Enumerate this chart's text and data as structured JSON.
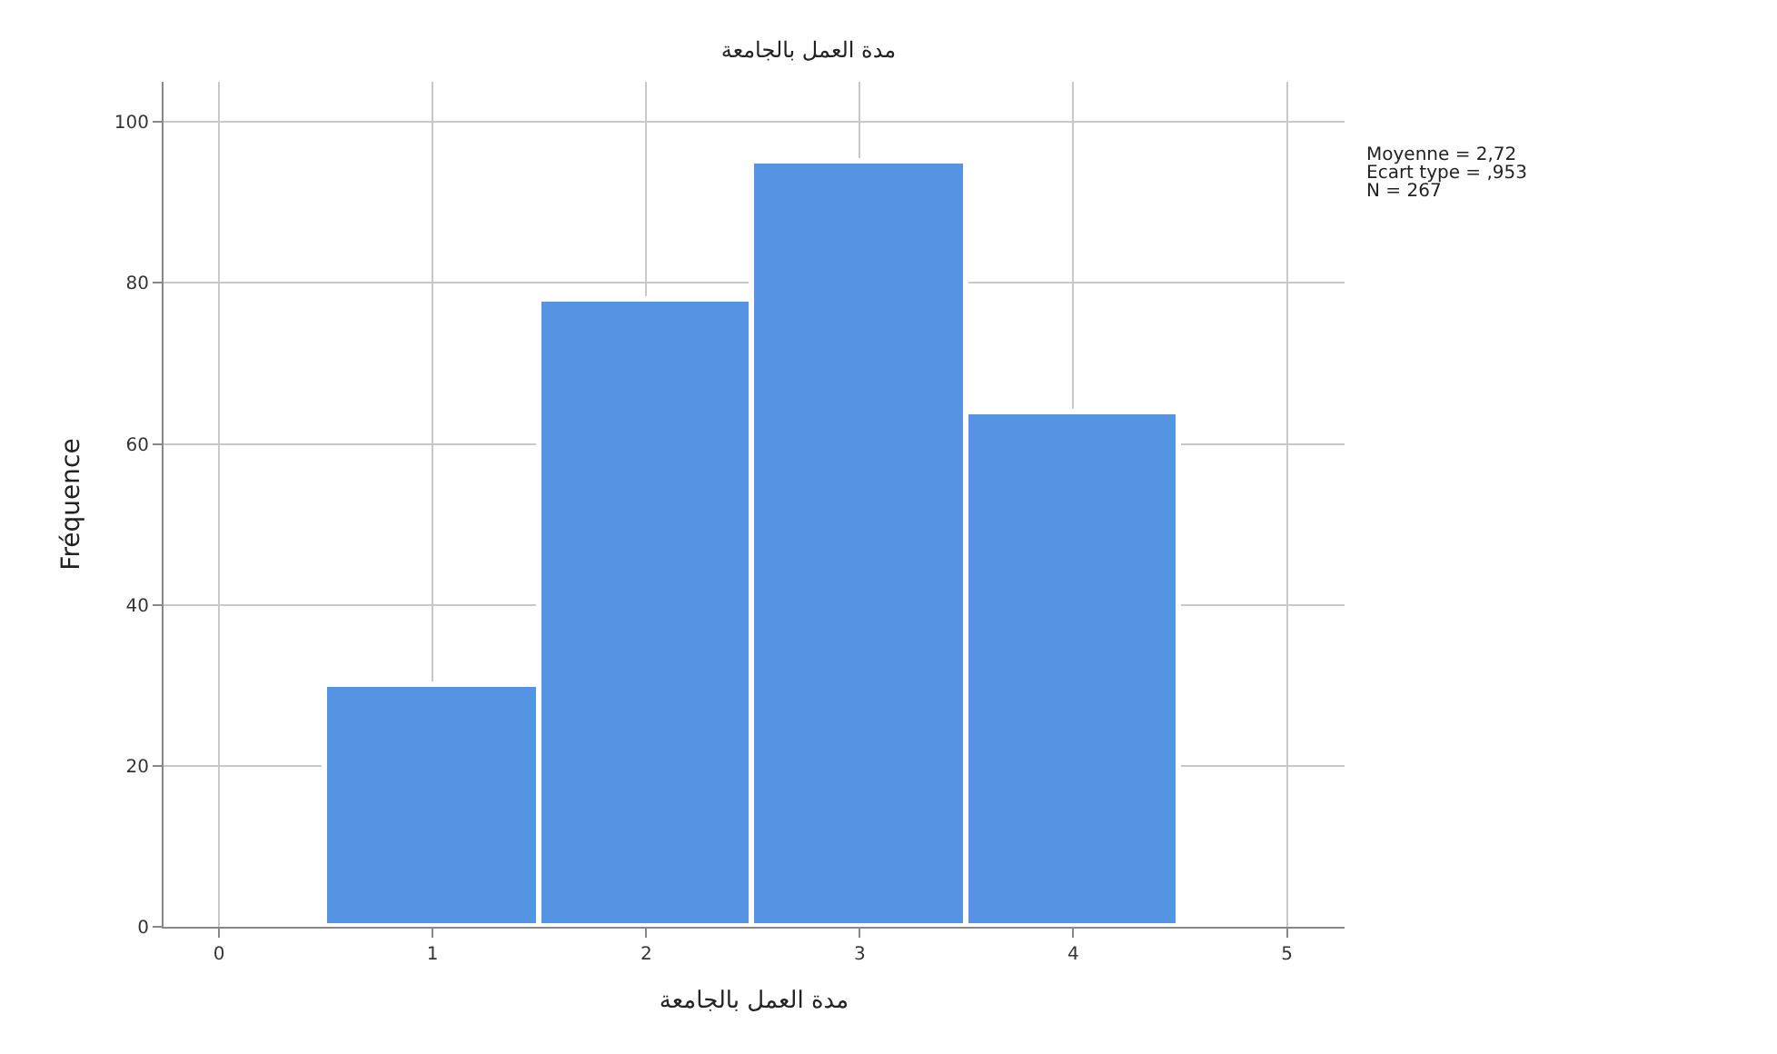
{
  "chart_data": {
    "type": "histogram",
    "title": "مدة العمل بالجامعة",
    "xlabel": "مدة العمل بالجامعة",
    "ylabel": "Fréquence",
    "bins": [
      0.5,
      1.5,
      2.5,
      3.5,
      4.5
    ],
    "values": [
      30,
      78,
      95,
      64
    ],
    "color": "#5594e2",
    "xlim": [
      -0.26,
      5.27
    ],
    "xticks": [
      0,
      1,
      2,
      3,
      4,
      5
    ],
    "ylim": [
      0,
      105
    ],
    "yticks": [
      0,
      20,
      40,
      60,
      80,
      100
    ],
    "grid": true,
    "annotations": [
      "Moyenne = 2,72",
      "Ecart type = ,953",
      "N = 267"
    ]
  }
}
